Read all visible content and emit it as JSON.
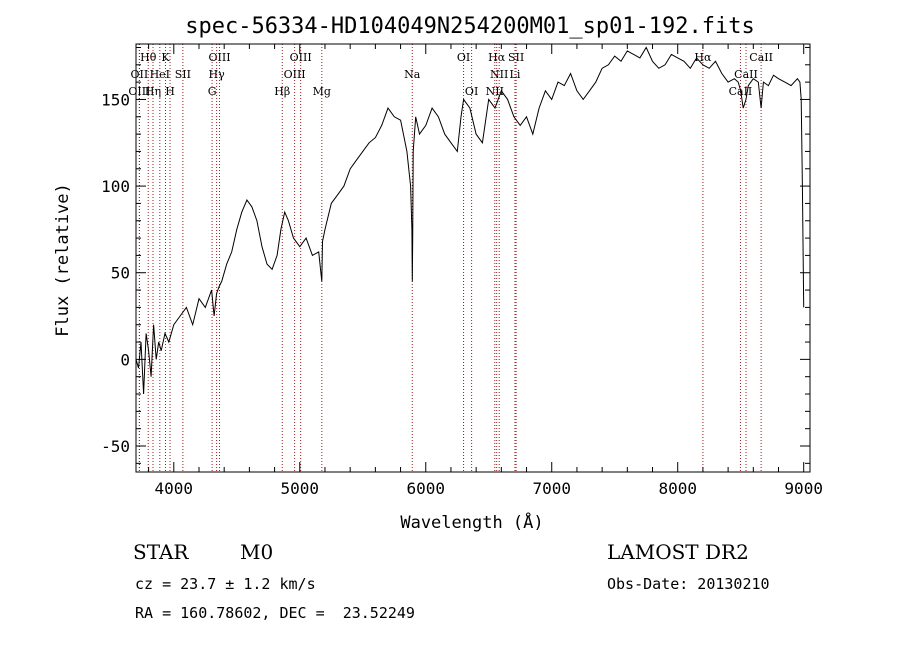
{
  "chart_data": {
    "type": "line",
    "title": "spec-56334-HD104049N254200M01_sp01-192.fits",
    "xlabel": "Wavelength (Å)",
    "ylabel": "Flux (relative)",
    "xlim": [
      3700,
      9050
    ],
    "ylim": [
      -65,
      182
    ],
    "xticks": [
      4000,
      5000,
      6000,
      7000,
      8000,
      9000
    ],
    "yticks": [
      -50,
      0,
      50,
      100,
      150
    ],
    "grid": false,
    "series": [
      {
        "x": [
          3700,
          3720,
          3740,
          3760,
          3780,
          3800,
          3820,
          3840,
          3860,
          3880,
          3900,
          3930,
          3960,
          4000,
          4050,
          4100,
          4150,
          4200,
          4250,
          4300,
          4320,
          4340,
          4360,
          4380,
          4420,
          4460,
          4500,
          4540,
          4580,
          4620,
          4660,
          4700,
          4740,
          4780,
          4820,
          4850,
          4880,
          4910,
          4950,
          5000,
          5050,
          5100,
          5150,
          5175,
          5180,
          5200,
          5250,
          5300,
          5350,
          5400,
          5450,
          5500,
          5550,
          5600,
          5650,
          5700,
          5750,
          5800,
          5850,
          5880,
          5890,
          5893,
          5896,
          5900,
          5920,
          5950,
          6000,
          6050,
          6100,
          6150,
          6200,
          6250,
          6280,
          6300,
          6350,
          6400,
          6450,
          6500,
          6550,
          6600,
          6650,
          6700,
          6750,
          6800,
          6850,
          6900,
          6950,
          7000,
          7050,
          7100,
          7150,
          7200,
          7250,
          7300,
          7350,
          7400,
          7450,
          7500,
          7550,
          7600,
          7650,
          7700,
          7750,
          7800,
          7850,
          7900,
          7950,
          8000,
          8050,
          8100,
          8150,
          8200,
          8250,
          8300,
          8350,
          8400,
          8450,
          8480,
          8500,
          8520,
          8542,
          8560,
          8600,
          8640,
          8662,
          8680,
          8720,
          8760,
          8800,
          8850,
          8900,
          8950,
          8970,
          8980,
          8990,
          9000
        ],
        "y": [
          0,
          -5,
          10,
          -20,
          15,
          5,
          -10,
          20,
          0,
          10,
          5,
          15,
          10,
          20,
          25,
          30,
          20,
          35,
          30,
          40,
          25,
          38,
          42,
          45,
          55,
          62,
          75,
          85,
          92,
          88,
          80,
          65,
          55,
          52,
          60,
          75,
          85,
          80,
          70,
          65,
          70,
          60,
          62,
          45,
          68,
          75,
          90,
          95,
          100,
          110,
          115,
          120,
          125,
          128,
          135,
          145,
          140,
          138,
          120,
          100,
          75,
          45,
          70,
          120,
          140,
          130,
          135,
          145,
          140,
          130,
          125,
          120,
          140,
          150,
          145,
          130,
          125,
          150,
          145,
          155,
          150,
          140,
          135,
          140,
          130,
          145,
          155,
          150,
          160,
          158,
          165,
          155,
          150,
          155,
          160,
          168,
          170,
          175,
          172,
          178,
          176,
          174,
          180,
          172,
          168,
          170,
          176,
          174,
          172,
          168,
          174,
          170,
          168,
          172,
          165,
          160,
          162,
          160,
          155,
          145,
          150,
          158,
          162,
          160,
          145,
          160,
          158,
          164,
          162,
          160,
          158,
          162,
          160,
          150,
          100,
          30
        ]
      }
    ],
    "line_markers": [
      {
        "label": "Hθ",
        "x": 3797,
        "row": 1
      },
      {
        "label": "OII",
        "x": 3727,
        "row": 2
      },
      {
        "label": "OIII",
        "x": 3727,
        "row": 3
      },
      {
        "label": "K",
        "x": 3934,
        "row": 1
      },
      {
        "label": "HeI",
        "x": 3889,
        "row": 2
      },
      {
        "label": "Hη",
        "x": 3835,
        "row": 3
      },
      {
        "label": "H",
        "x": 3970,
        "row": 3
      },
      {
        "label": "SII",
        "x": 4072,
        "row": 2
      },
      {
        "label": "OIII",
        "x": 4363,
        "row": 1
      },
      {
        "label": "Hγ",
        "x": 4340,
        "row": 2
      },
      {
        "label": "G",
        "x": 4304,
        "row": 3
      },
      {
        "label": "OIII",
        "x": 5007,
        "row": 1
      },
      {
        "label": "OIII",
        "x": 4959,
        "row": 2
      },
      {
        "label": "Hβ",
        "x": 4861,
        "row": 3
      },
      {
        "label": "Mg",
        "x": 5175,
        "row": 3
      },
      {
        "label": "Na",
        "x": 5893,
        "row": 2
      },
      {
        "label": "OI",
        "x": 6300,
        "row": 1
      },
      {
        "label": "OI",
        "x": 6364,
        "row": 3
      },
      {
        "label": "Hα",
        "x": 6563,
        "row": 1
      },
      {
        "label": "SII",
        "x": 6717,
        "row": 1
      },
      {
        "label": "NII",
        "x": 6583,
        "row": 2
      },
      {
        "label": "Li",
        "x": 6708,
        "row": 2
      },
      {
        "label": "NII",
        "x": 6548,
        "row": 3
      },
      {
        "label": "Hα",
        "x": 8200,
        "row": 1
      },
      {
        "label": "CaII",
        "x": 8542,
        "row": 2
      },
      {
        "label": "CaII",
        "x": 8662,
        "row": 1
      },
      {
        "label": "CaII",
        "x": 8498,
        "row": 3
      }
    ]
  },
  "info": {
    "class": "STAR",
    "subclass": "M0",
    "survey": "LAMOST DR2",
    "cz": "cz = 23.7 ± 1.2 km/s",
    "obs_date": "Obs-Date: 20130210",
    "radec": "RA = 160.78602, DEC =  23.52249"
  }
}
